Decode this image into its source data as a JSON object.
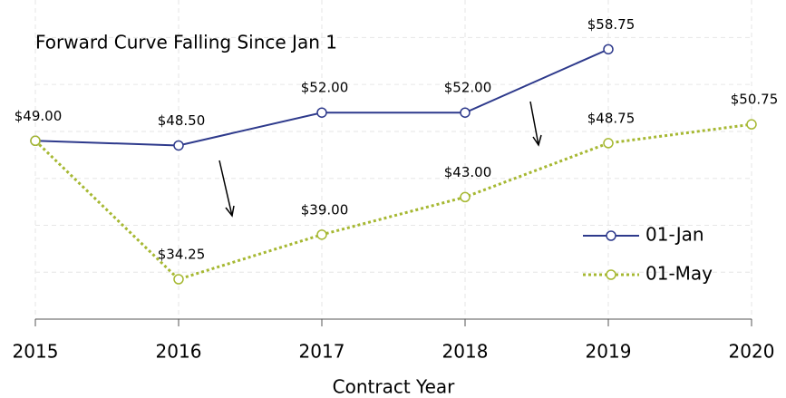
{
  "chart_data": {
    "type": "line",
    "title": "Forward Curve Falling Since Jan 1",
    "x_label": "Contract Year",
    "x": [
      2015,
      2016,
      2017,
      2018,
      2019,
      2020
    ],
    "xlim": [
      2015,
      2020
    ],
    "xticks": [
      2015,
      2016,
      2017,
      2018,
      2019,
      2020
    ],
    "ylim": [
      30,
      64
    ],
    "yticks": [
      35,
      40,
      45,
      50,
      55,
      60
    ],
    "grid": true,
    "legend": "lower right",
    "series": [
      {
        "name": "01-Jan",
        "color": "#2e3a8c",
        "style": "solid",
        "values": [
          49,
          48.5,
          52,
          52,
          58.75,
          null
        ],
        "value_labels": [
          "$49.00",
          "$48.50",
          "$52.00",
          "$52.00",
          "$58.75",
          null
        ]
      },
      {
        "name": "01-May",
        "color": "#a6b832",
        "style": "dotted",
        "values": [
          49,
          34.25,
          39,
          43,
          48.75,
          50.75
        ],
        "value_labels": [
          null,
          "$34.25",
          "$39.00",
          "$43.00",
          "$48.75",
          "$50.75"
        ]
      }
    ]
  }
}
